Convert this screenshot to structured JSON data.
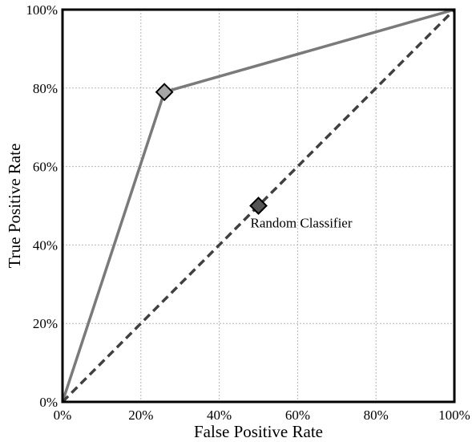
{
  "chart_data": {
    "type": "line",
    "xlabel": "False Positive Rate",
    "ylabel": "True Positive Rate",
    "xlim": [
      0,
      100
    ],
    "ylim": [
      0,
      100
    ],
    "x_ticks": [
      "0%",
      "20%",
      "40%",
      "60%",
      "80%",
      "100%"
    ],
    "y_ticks": [
      "0%",
      "20%",
      "40%",
      "60%",
      "80%",
      "100%"
    ],
    "grid": true,
    "series": [
      {
        "style": "solid",
        "color": "#7a7a7a",
        "points": [
          [
            0,
            0
          ],
          [
            26,
            79
          ],
          [
            100,
            100
          ]
        ],
        "marker": {
          "x": 26,
          "y": 79,
          "shape": "diamond",
          "color": "#a6a6a6"
        }
      },
      {
        "style": "dashed",
        "color": "#404040",
        "points": [
          [
            0,
            0
          ],
          [
            100,
            100
          ]
        ],
        "marker": {
          "x": 50,
          "y": 50,
          "shape": "diamond",
          "color": "#555555"
        }
      }
    ],
    "annotations": [
      {
        "text": "Random Classifier",
        "x": 50,
        "y": 50
      }
    ]
  }
}
